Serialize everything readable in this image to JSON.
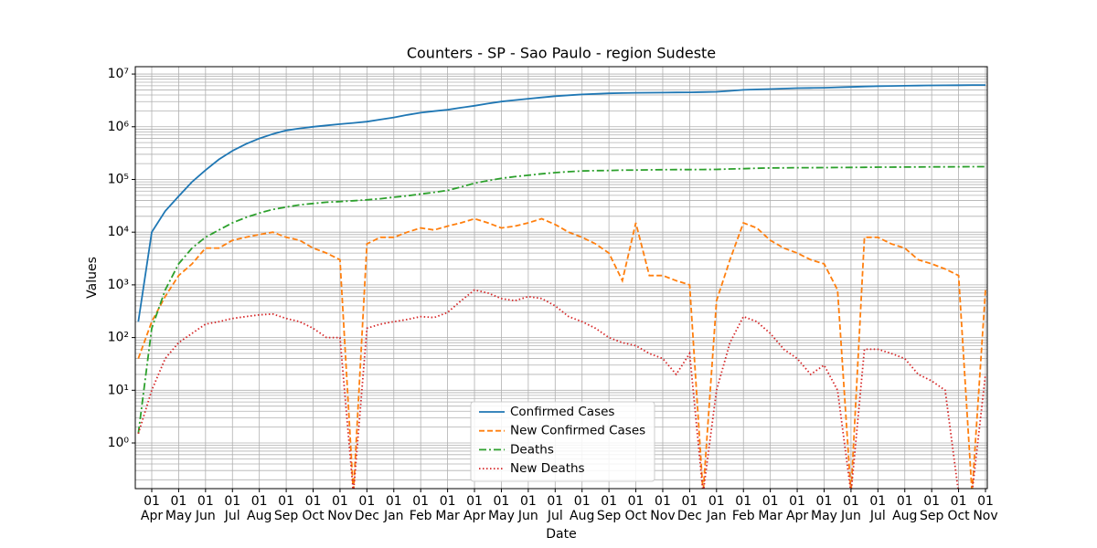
{
  "chart_data": {
    "type": "line",
    "title": "Counters - SP - Sao Paulo - region Sudeste",
    "x_label": "Date",
    "y_label": "Values",
    "log_y": true,
    "grid": true,
    "legend": "lower center",
    "categories": [
      null,
      "01 Apr",
      null,
      "01 May",
      null,
      "01 Jun",
      null,
      "01 Jul",
      null,
      "01 Aug",
      null,
      "01 Sep",
      null,
      "01 Oct",
      null,
      "01 Nov",
      null,
      "01 Dec",
      null,
      "01 Jan",
      null,
      "01 Feb",
      null,
      "01 Mar",
      null,
      "01 Apr",
      null,
      "01 May",
      null,
      "01 Jun",
      null,
      "01 Jul",
      null,
      "01 Aug",
      null,
      "01 Sep",
      null,
      "01 Oct",
      null,
      "01 Nov",
      null,
      "01 Dec",
      null,
      "01 Jan",
      null,
      "01 Feb",
      null,
      "01 Mar",
      null,
      "01 Apr",
      null,
      "01 May",
      null,
      "01 Jun",
      null,
      "01 Jul",
      null,
      "01 Aug",
      null,
      "01 Sep",
      null,
      "01 Oct",
      null,
      "01 Nov"
    ],
    "ylim": [
      0.136,
      13800000
    ],
    "yticks": [
      {
        "value": 1,
        "label": "10⁰"
      },
      {
        "value": 10,
        "label": "10¹"
      },
      {
        "value": 100,
        "label": "10²"
      },
      {
        "value": 1000,
        "label": "10³"
      },
      {
        "value": 10000,
        "label": "10⁴"
      },
      {
        "value": 100000,
        "label": "10⁵"
      },
      {
        "value": 1000000,
        "label": "10⁶"
      },
      {
        "value": 10000000,
        "label": "10⁷"
      }
    ],
    "series": [
      {
        "name": "Confirmed Cases",
        "color": "#1f77b4",
        "linestyle": "solid",
        "values": [
          200,
          10000,
          25000,
          48000,
          90000,
          150000,
          240000,
          350000,
          470000,
          600000,
          730000,
          850000,
          930000,
          1000000,
          1060000,
          1120000,
          1180000,
          1250000,
          1370000,
          1500000,
          1680000,
          1850000,
          1980000,
          2100000,
          2300000,
          2500000,
          2750000,
          3000000,
          3200000,
          3400000,
          3600000,
          3800000,
          3950000,
          4100000,
          4200000,
          4300000,
          4350000,
          4400000,
          4420000,
          4450000,
          4480000,
          4500000,
          4550000,
          4600000,
          4800000,
          5000000,
          5100000,
          5200000,
          5300000,
          5400000,
          5450000,
          5500000,
          5600000,
          5700000,
          5800000,
          5900000,
          5950000,
          6000000,
          6050000,
          6100000,
          6120000,
          6150000,
          6180000,
          6200000
        ]
      },
      {
        "name": "New Confirmed Cases",
        "color": "#ff7f0e",
        "linestyle": "dashed",
        "values": [
          40,
          200,
          600,
          1500,
          2500,
          5000,
          5000,
          7000,
          8000,
          9000,
          10000,
          8000,
          7000,
          5000,
          4000,
          3000,
          0,
          6000,
          8000,
          8000,
          10000,
          12000,
          11000,
          13000,
          15000,
          18000,
          15000,
          12000,
          13000,
          15000,
          18000,
          14000,
          10000,
          8000,
          6000,
          4000,
          1200,
          15000,
          1500,
          1500,
          1200,
          1000,
          0,
          500,
          3000,
          15000,
          12000,
          7000,
          5000,
          4000,
          3000,
          2500,
          800,
          0,
          8000,
          8000,
          6000,
          5000,
          3000,
          2500,
          2000,
          1500,
          0,
          800
        ]
      },
      {
        "name": "Deaths",
        "color": "#2ca02c",
        "linestyle": "dashdot",
        "values": [
          1.5,
          150,
          800,
          2500,
          5000,
          8000,
          11000,
          15000,
          19000,
          23000,
          27000,
          30000,
          33000,
          35000,
          37000,
          38000,
          39500,
          41000,
          43000,
          46000,
          49000,
          53000,
          57000,
          62000,
          72000,
          85000,
          95000,
          105000,
          113000,
          120000,
          128000,
          135000,
          140000,
          145000,
          147000,
          148000,
          150000,
          151000,
          152000,
          153000,
          153500,
          154000,
          154500,
          155000,
          158000,
          160000,
          163000,
          165000,
          166000,
          167000,
          167500,
          168000,
          168500,
          169000,
          170000,
          171000,
          171500,
          172000,
          172500,
          173000,
          173500,
          174000,
          174500,
          175000
        ]
      },
      {
        "name": "New Deaths",
        "color": "#d62728",
        "linestyle": "dotted",
        "values": [
          1.5,
          10,
          40,
          80,
          120,
          180,
          200,
          230,
          250,
          270,
          280,
          230,
          200,
          150,
          100,
          100,
          0,
          150,
          180,
          200,
          220,
          250,
          240,
          300,
          500,
          800,
          700,
          550,
          500,
          600,
          550,
          400,
          250,
          200,
          150,
          100,
          80,
          70,
          50,
          40,
          20,
          50,
          0,
          10,
          80,
          250,
          200,
          120,
          60,
          40,
          20,
          30,
          10,
          0,
          60,
          60,
          50,
          40,
          20,
          15,
          10,
          0,
          0,
          20
        ]
      }
    ]
  }
}
